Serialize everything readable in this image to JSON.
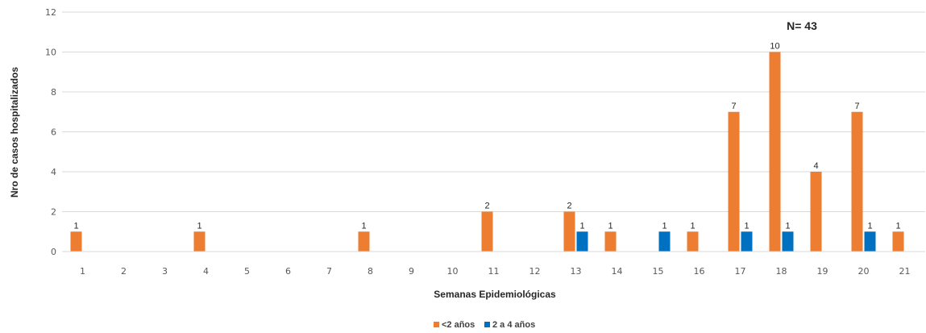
{
  "chart_data": {
    "type": "bar",
    "title": "",
    "xlabel": "Semanas Epidemiológicas",
    "ylabel": "Nro de casos hospitalizados",
    "ylim": [
      0,
      12
    ],
    "yticks": [
      "0",
      "2",
      "4",
      "6",
      "8",
      "10",
      "12"
    ],
    "grid": true,
    "legend_position": "bottom",
    "categories": [
      "1",
      "2",
      "3",
      "4",
      "5",
      "6",
      "7",
      "8",
      "9",
      "10",
      "11",
      "12",
      "13",
      "14",
      "15",
      "16",
      "17",
      "18",
      "19",
      "20",
      "21"
    ],
    "series": [
      {
        "name": "<2 años",
        "color": "#ED7D31",
        "values": [
          1,
          0,
          0,
          1,
          0,
          0,
          0,
          1,
          0,
          0,
          2,
          0,
          2,
          1,
          0,
          1,
          7,
          10,
          4,
          7,
          1
        ],
        "labels": [
          "1",
          "",
          "",
          "1",
          "",
          "",
          "",
          "1",
          "",
          "",
          "2",
          "",
          "2",
          "1",
          "",
          "1",
          "7",
          "10",
          "4",
          "7",
          "1"
        ]
      },
      {
        "name": "2 a 4 años",
        "color": "#0070C0",
        "values": [
          0,
          0,
          0,
          0,
          0,
          0,
          0,
          0,
          0,
          0,
          0,
          0,
          1,
          0,
          1,
          0,
          1,
          1,
          0,
          1,
          0
        ],
        "labels": [
          "",
          "",
          "",
          "",
          "",
          "",
          "",
          "",
          "",
          "",
          "",
          "",
          "1",
          "",
          "1",
          "",
          "1",
          "1",
          "",
          "1",
          ""
        ]
      }
    ],
    "annotation": "N= 43"
  }
}
